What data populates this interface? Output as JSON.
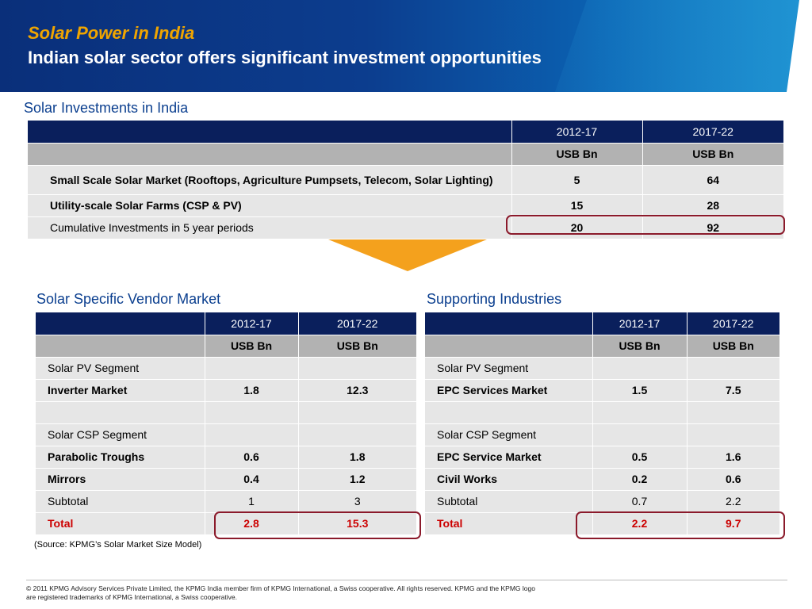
{
  "header": {
    "title": "Solar Power in India",
    "subtitle": "Indian solar sector offers significant investment opportunities"
  },
  "top_section": {
    "title": "Solar Investments in India",
    "columns": [
      "2012-17",
      "2017-22"
    ],
    "units": [
      "USB Bn",
      "USB Bn"
    ],
    "rows": [
      {
        "label": "Small Scale Solar Market (Rooftops, Agriculture Pumpsets, Telecom, Solar Lighting)",
        "v1": "5",
        "v2": "64"
      },
      {
        "label": "Utility-scale Solar Farms (CSP & PV)",
        "v1": "15",
        "v2": "28"
      },
      {
        "label": "Cumulative Investments in 5 year periods",
        "v1": "20",
        "v2": "92"
      }
    ]
  },
  "vendor_section": {
    "title": "Solar Specific Vendor Market",
    "columns": [
      "2012-17",
      "2017-22"
    ],
    "units": [
      "USB Bn",
      "USB Bn"
    ],
    "rows": [
      {
        "label": "Solar PV Segment",
        "v1": "",
        "v2": ""
      },
      {
        "label": "Inverter Market",
        "v1": "1.8",
        "v2": "12.3"
      },
      {
        "label": "",
        "v1": "",
        "v2": ""
      },
      {
        "label": "Solar CSP Segment",
        "v1": "",
        "v2": ""
      },
      {
        "label": "Parabolic Troughs",
        "v1": "0.6",
        "v2": "1.8"
      },
      {
        "label": "Mirrors",
        "v1": "0.4",
        "v2": "1.2"
      },
      {
        "label": "Subtotal",
        "v1": "1",
        "v2": "3"
      },
      {
        "label": "Total",
        "v1": "2.8",
        "v2": "15.3"
      }
    ]
  },
  "support_section": {
    "title": "Supporting Industries",
    "columns": [
      "2012-17",
      "2017-22"
    ],
    "units": [
      "USB Bn",
      "USB Bn"
    ],
    "rows": [
      {
        "label": "Solar PV Segment",
        "v1": "",
        "v2": ""
      },
      {
        "label": "EPC Services Market",
        "v1": "1.5",
        "v2": "7.5"
      },
      {
        "label": "",
        "v1": "",
        "v2": ""
      },
      {
        "label": "Solar CSP Segment",
        "v1": "",
        "v2": ""
      },
      {
        "label": "EPC Service Market",
        "v1": "0.5",
        "v2": "1.6"
      },
      {
        "label": "Civil Works",
        "v1": "0.2",
        "v2": "0.6"
      },
      {
        "label": "Subtotal",
        "v1": "0.7",
        "v2": "2.2"
      },
      {
        "label": "Total",
        "v1": "2.2",
        "v2": "9.7"
      }
    ]
  },
  "source": "(Source: KPMG’s Solar Market Size Model)",
  "footer": "© 2011 KPMG Advisory Services Private Limited, the KPMG India member firm of KPMG International, a Swiss cooperative. All rights reserved. KPMG and the KPMG logo are registered trademarks of KPMG International, a Swiss cooperative.",
  "colors": {
    "header_dark": "#0a2f7a",
    "title_accent": "#f0a500",
    "section_title": "#0b3f8f",
    "table_header": "#0a1f5c",
    "unit_row": "#b2b2b2",
    "body_row": "#e6e6e6",
    "total_text": "#cc0000",
    "highlight_box": "#8b1a2b",
    "arrow": "#f4a11d"
  }
}
